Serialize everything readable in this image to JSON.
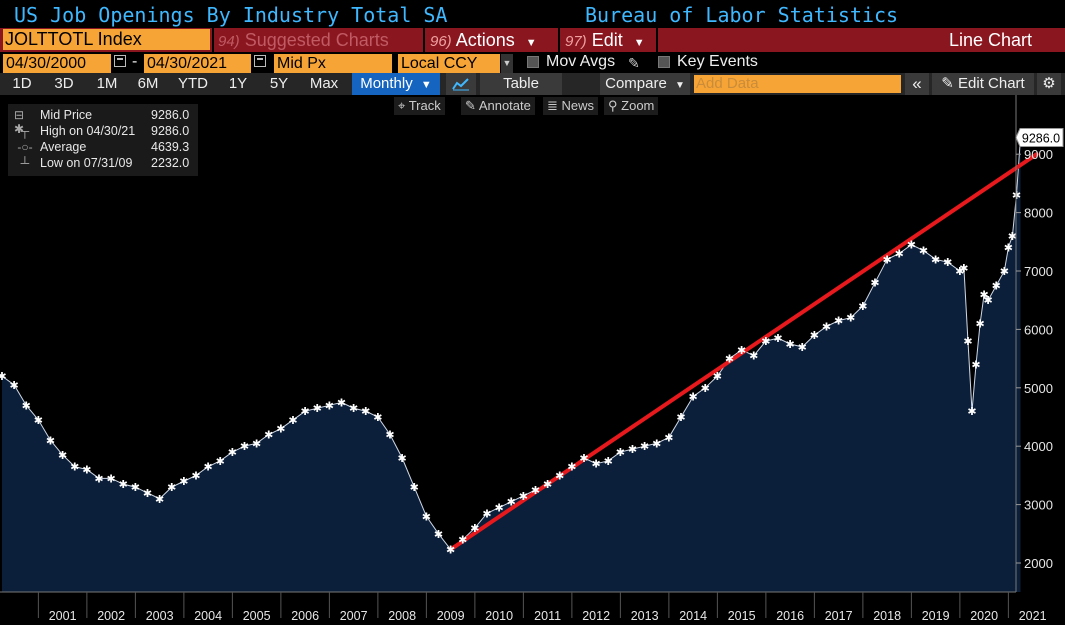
{
  "header": {
    "title": "US Job Openings By Industry Total SA",
    "source": "Bureau of Labor Statistics"
  },
  "command_bar": {
    "ticker": "JOLTTOTL Index",
    "suggested_num": "94)",
    "suggested_label": "Suggested Charts",
    "actions_num": "96)",
    "actions_label": "Actions",
    "edit_num": "97)",
    "edit_label": "Edit",
    "chart_type": "Line Chart"
  },
  "params": {
    "start_date": "04/30/2000",
    "dash": "-",
    "end_date": "04/30/2021",
    "price_field": "Mid Px",
    "currency": "Local CCY",
    "mov_avgs": "Mov Avgs",
    "key_events": "Key Events"
  },
  "toolbar": {
    "ranges": [
      "1D",
      "3D",
      "1M",
      "6M",
      "YTD",
      "1Y",
      "5Y",
      "Max"
    ],
    "frequency": "Monthly",
    "table": "Table",
    "compare": "Compare",
    "add_data_placeholder": "Add Data",
    "edit_chart": "Edit Chart"
  },
  "subtoolbar": {
    "track": "Track",
    "annotate": "Annotate",
    "news": "News",
    "zoom": "Zoom"
  },
  "legend": {
    "rows": [
      {
        "label": "Mid Price",
        "value": "9286.0"
      },
      {
        "label": "High on 04/30/21",
        "value": "9286.0"
      },
      {
        "label": "Average",
        "value": "4639.3"
      },
      {
        "label": "Low on 07/31/09",
        "value": "2232.0"
      }
    ]
  },
  "colors": {
    "area_fill": "#0c1f3a",
    "series_marker": "#ffffff",
    "trendline": "#e8191c",
    "accent_blue": "#3fb8ff",
    "command_bar": "#8a1620",
    "field_orange": "#f7a436"
  },
  "chart_data": {
    "type": "area",
    "title": "US Job Openings By Industry Total SA",
    "x_unit": "date (monthly)",
    "x_range": [
      "2000-04",
      "2021-04"
    ],
    "ylim": [
      1800,
      9500
    ],
    "y_ticks": [
      2000,
      3000,
      4000,
      5000,
      6000,
      7000,
      8000,
      9000
    ],
    "x_ticks": [
      "2001",
      "2002",
      "2003",
      "2004",
      "2005",
      "2006",
      "2007",
      "2008",
      "2009",
      "2010",
      "2011",
      "2012",
      "2013",
      "2014",
      "2015",
      "2016",
      "2017",
      "2018",
      "2019",
      "2020",
      "2021"
    ],
    "last_value_label": "9286.0",
    "grid": false,
    "series": [
      {
        "name": "Mid Price",
        "points": [
          [
            "2000-04",
            5200
          ],
          [
            "2000-07",
            5050
          ],
          [
            "2000-10",
            4700
          ],
          [
            "2001-01",
            4450
          ],
          [
            "2001-04",
            4100
          ],
          [
            "2001-07",
            3850
          ],
          [
            "2001-10",
            3650
          ],
          [
            "2002-01",
            3600
          ],
          [
            "2002-04",
            3450
          ],
          [
            "2002-07",
            3450
          ],
          [
            "2002-10",
            3350
          ],
          [
            "2003-01",
            3300
          ],
          [
            "2003-04",
            3200
          ],
          [
            "2003-07",
            3100
          ],
          [
            "2003-10",
            3300
          ],
          [
            "2004-01",
            3400
          ],
          [
            "2004-04",
            3500
          ],
          [
            "2004-07",
            3650
          ],
          [
            "2004-10",
            3750
          ],
          [
            "2005-01",
            3900
          ],
          [
            "2005-04",
            4000
          ],
          [
            "2005-07",
            4050
          ],
          [
            "2005-10",
            4200
          ],
          [
            "2006-01",
            4300
          ],
          [
            "2006-04",
            4450
          ],
          [
            "2006-07",
            4600
          ],
          [
            "2006-10",
            4650
          ],
          [
            "2007-01",
            4700
          ],
          [
            "2007-04",
            4750
          ],
          [
            "2007-07",
            4650
          ],
          [
            "2007-10",
            4600
          ],
          [
            "2008-01",
            4500
          ],
          [
            "2008-04",
            4200
          ],
          [
            "2008-07",
            3800
          ],
          [
            "2008-10",
            3300
          ],
          [
            "2009-01",
            2800
          ],
          [
            "2009-04",
            2500
          ],
          [
            "2009-07",
            2232
          ],
          [
            "2009-10",
            2400
          ],
          [
            "2010-01",
            2600
          ],
          [
            "2010-04",
            2850
          ],
          [
            "2010-07",
            2950
          ],
          [
            "2010-10",
            3050
          ],
          [
            "2011-01",
            3150
          ],
          [
            "2011-04",
            3250
          ],
          [
            "2011-07",
            3350
          ],
          [
            "2011-10",
            3500
          ],
          [
            "2012-01",
            3650
          ],
          [
            "2012-04",
            3800
          ],
          [
            "2012-07",
            3700
          ],
          [
            "2012-10",
            3750
          ],
          [
            "2013-01",
            3900
          ],
          [
            "2013-04",
            3950
          ],
          [
            "2013-07",
            4000
          ],
          [
            "2013-10",
            4050
          ],
          [
            "2014-01",
            4150
          ],
          [
            "2014-04",
            4500
          ],
          [
            "2014-07",
            4850
          ],
          [
            "2014-10",
            5000
          ],
          [
            "2015-01",
            5200
          ],
          [
            "2015-04",
            5500
          ],
          [
            "2015-07",
            5650
          ],
          [
            "2015-10",
            5550
          ],
          [
            "2016-01",
            5800
          ],
          [
            "2016-04",
            5850
          ],
          [
            "2016-07",
            5750
          ],
          [
            "2016-10",
            5700
          ],
          [
            "2017-01",
            5900
          ],
          [
            "2017-04",
            6050
          ],
          [
            "2017-07",
            6150
          ],
          [
            "2017-10",
            6200
          ],
          [
            "2018-01",
            6400
          ],
          [
            "2018-04",
            6800
          ],
          [
            "2018-07",
            7200
          ],
          [
            "2018-10",
            7300
          ],
          [
            "2019-01",
            7450
          ],
          [
            "2019-04",
            7350
          ],
          [
            "2019-07",
            7200
          ],
          [
            "2019-10",
            7150
          ],
          [
            "2020-01",
            7000
          ],
          [
            "2020-02",
            7050
          ],
          [
            "2020-03",
            5800
          ],
          [
            "2020-04",
            4600
          ],
          [
            "2020-05",
            5400
          ],
          [
            "2020-06",
            6100
          ],
          [
            "2020-07",
            6600
          ],
          [
            "2020-08",
            6500
          ],
          [
            "2020-10",
            6750
          ],
          [
            "2020-12",
            7000
          ],
          [
            "2021-01",
            7400
          ],
          [
            "2021-02",
            7600
          ],
          [
            "2021-03",
            8300
          ],
          [
            "2021-04",
            9286
          ]
        ]
      }
    ],
    "trendline": {
      "from": [
        "2009-07",
        2232
      ],
      "to": [
        "2021-08",
        9000
      ]
    }
  }
}
